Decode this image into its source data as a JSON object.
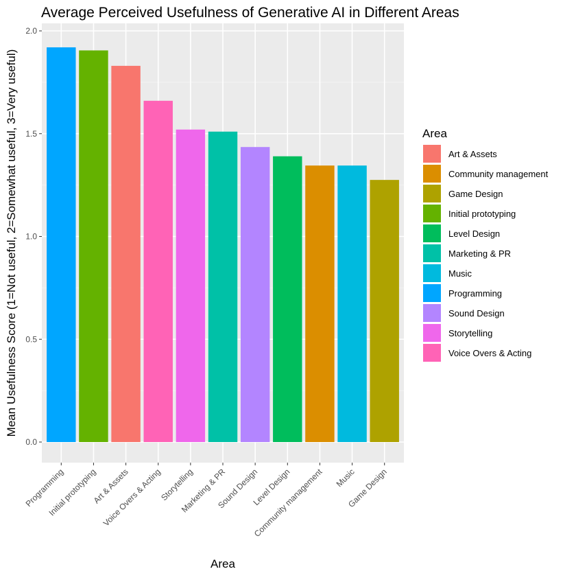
{
  "chart_data": {
    "type": "bar",
    "title": "Average Perceived Usefulness of Generative AI in Different Areas",
    "xlabel": "Area",
    "ylabel": "Mean Usefulness Score (1=Not useful, 2=Somewhat useful, 3=Very useful)",
    "ylim": [
      0,
      2.0
    ],
    "yticks": [
      "0.0",
      "0.5",
      "1.0",
      "1.5",
      "2.0"
    ],
    "grid": true,
    "legend_position": "right",
    "categories": [
      "Programming",
      "Initial prototyping",
      "Art & Assets",
      "Voice Overs & Acting",
      "Storytelling",
      "Marketing & PR",
      "Sound Design",
      "Level Design",
      "Community management",
      "Music",
      "Game Design"
    ],
    "values": [
      1.92,
      1.905,
      1.83,
      1.66,
      1.52,
      1.51,
      1.435,
      1.39,
      1.345,
      1.345,
      1.275
    ],
    "colors": {
      "Art & Assets": "#F8766D",
      "Community management": "#DB8E00",
      "Game Design": "#AEA200",
      "Initial prototyping": "#64B200",
      "Level Design": "#00BD5C",
      "Marketing & PR": "#00C1A7",
      "Music": "#00BADE",
      "Programming": "#00A6FF",
      "Sound Design": "#B385FF",
      "Storytelling": "#EF67EB",
      "Voice Overs & Acting": "#FF63B6"
    },
    "legend": {
      "title": "Area",
      "entries": [
        "Art & Assets",
        "Community management",
        "Game Design",
        "Initial prototyping",
        "Level Design",
        "Marketing & PR",
        "Music",
        "Programming",
        "Sound Design",
        "Storytelling",
        "Voice Overs & Acting"
      ]
    }
  }
}
